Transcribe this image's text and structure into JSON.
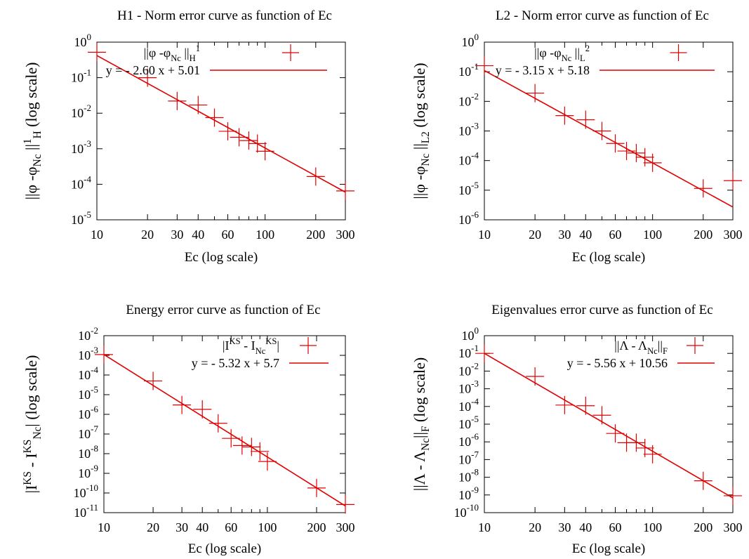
{
  "colors": {
    "series": "#e00000",
    "axes": "#000000",
    "background": "#ffffff"
  },
  "chart_data": [
    {
      "type": "scatter",
      "title": "H1 - Norm error curve as function of Ec",
      "xlabel": "Ec (log scale)",
      "ylabel": {
        "pre": "||φ -φ",
        "sub1": "Nc",
        "mid": " ||",
        "sub2": "H",
        "sup2": "1",
        "post": " (log scale)"
      },
      "xscale": "log",
      "yscale": "log",
      "xlim": [
        10,
        300
      ],
      "ylim": [
        1e-05,
        1
      ],
      "xticks": [
        {
          "v": 10,
          "label": "10"
        },
        {
          "v": 20,
          "label": "20"
        },
        {
          "v": 30,
          "label": "30"
        },
        {
          "v": 40,
          "label": "40"
        },
        {
          "v": 60,
          "label": "60"
        },
        {
          "v": 100,
          "label": "100"
        },
        {
          "v": 200,
          "label": "200"
        },
        {
          "v": 300,
          "label": "300"
        }
      ],
      "yticks": [
        {
          "v": 1e-05,
          "base": "10",
          "exp": "-5"
        },
        {
          "v": 0.0001,
          "base": "10",
          "exp": "-4"
        },
        {
          "v": 0.001,
          "base": "10",
          "exp": "-3"
        },
        {
          "v": 0.01,
          "base": "10",
          "exp": "-2"
        },
        {
          "v": 0.1,
          "base": "10",
          "exp": "-1"
        },
        {
          "v": 1,
          "base": "10",
          "exp": "0"
        }
      ],
      "legend_position": "top-right",
      "legend": [
        {
          "kind": "points",
          "label": {
            "pre": "||φ -φ",
            "sub": "Nc",
            "mid": " ||",
            "sub2": "H",
            "sup2": "1"
          }
        },
        {
          "kind": "line",
          "label": "y = - 2.60 x + 5.01"
        }
      ],
      "series": [
        {
          "kind": "points",
          "x": [
            10,
            20,
            30,
            40,
            50,
            60,
            70,
            80,
            90,
            100,
            200,
            300
          ],
          "y": [
            0.52,
            0.1,
            0.022,
            0.017,
            0.0075,
            0.0031,
            0.0021,
            0.0017,
            0.0014,
            0.00085,
            0.000165,
            6.5e-05
          ]
        },
        {
          "kind": "line",
          "x": [
            10,
            300
          ],
          "y": [
            0.42,
            6e-05
          ]
        }
      ]
    },
    {
      "type": "scatter",
      "title": "L2 - Norm error curve as function of Ec",
      "xlabel": "Ec (log scale)",
      "ylabel": {
        "pre": "||φ -φ",
        "sub1": "Nc",
        "mid": " ||",
        "sub2": "L2",
        "sup2": "",
        "post": " (log scale)"
      },
      "xscale": "log",
      "yscale": "log",
      "xlim": [
        10,
        300
      ],
      "ylim": [
        1e-06,
        1
      ],
      "xticks": [
        {
          "v": 10,
          "label": "10"
        },
        {
          "v": 20,
          "label": "20"
        },
        {
          "v": 30,
          "label": "30"
        },
        {
          "v": 40,
          "label": "40"
        },
        {
          "v": 60,
          "label": "60"
        },
        {
          "v": 100,
          "label": "100"
        },
        {
          "v": 200,
          "label": "200"
        },
        {
          "v": 300,
          "label": "300"
        }
      ],
      "yticks": [
        {
          "v": 1e-06,
          "base": "10",
          "exp": "-6"
        },
        {
          "v": 1e-05,
          "base": "10",
          "exp": "-5"
        },
        {
          "v": 0.0001,
          "base": "10",
          "exp": "-4"
        },
        {
          "v": 0.001,
          "base": "10",
          "exp": "-3"
        },
        {
          "v": 0.01,
          "base": "10",
          "exp": "-2"
        },
        {
          "v": 0.1,
          "base": "10",
          "exp": "-1"
        },
        {
          "v": 1,
          "base": "10",
          "exp": "0"
        }
      ],
      "legend_position": "top-right",
      "legend": [
        {
          "kind": "points",
          "label": {
            "pre": "||φ -φ",
            "sub": "Nc",
            "mid": " ||",
            "sub2": "L",
            "sup2": "2"
          }
        },
        {
          "kind": "line",
          "label": "y = - 3.15 x + 5.18"
        }
      ],
      "series": [
        {
          "kind": "points",
          "x": [
            10,
            20,
            30,
            40,
            50,
            60,
            70,
            80,
            90,
            100,
            200,
            300
          ],
          "y": [
            0.16,
            0.019,
            0.0033,
            0.0024,
            0.001,
            0.00038,
            0.00021,
            0.00018,
            0.00013,
            8.4e-05,
            1.15e-05,
            2.1e-05
          ]
        },
        {
          "kind": "line",
          "x": [
            10,
            300
          ],
          "y": [
            0.11,
            2.7e-06
          ]
        }
      ]
    },
    {
      "type": "scatter",
      "title": "Energy error curve as function of Ec",
      "xlabel": "Ec (log scale)",
      "ylabel": {
        "pre": "|I",
        "sup1": "KS",
        "mid": " - I",
        "sup2": "KS",
        "sub2": "Nc",
        "post": "| (log scale)"
      },
      "xscale": "log",
      "yscale": "log",
      "xlim": [
        10,
        300
      ],
      "ylim": [
        1e-11,
        0.01
      ],
      "xticks": [
        {
          "v": 10,
          "label": "10"
        },
        {
          "v": 20,
          "label": "20"
        },
        {
          "v": 30,
          "label": "30"
        },
        {
          "v": 40,
          "label": "40"
        },
        {
          "v": 60,
          "label": "60"
        },
        {
          "v": 100,
          "label": "100"
        },
        {
          "v": 200,
          "label": "200"
        },
        {
          "v": 300,
          "label": "300"
        }
      ],
      "yticks": [
        {
          "v": 1e-11,
          "base": "10",
          "exp": "-11"
        },
        {
          "v": 1e-10,
          "base": "10",
          "exp": "-10"
        },
        {
          "v": 1e-09,
          "base": "10",
          "exp": "-9"
        },
        {
          "v": 1e-08,
          "base": "10",
          "exp": "-8"
        },
        {
          "v": 1e-07,
          "base": "10",
          "exp": "-7"
        },
        {
          "v": 1e-06,
          "base": "10",
          "exp": "-6"
        },
        {
          "v": 1e-05,
          "base": "10",
          "exp": "-5"
        },
        {
          "v": 0.0001,
          "base": "10",
          "exp": "-4"
        },
        {
          "v": 0.001,
          "base": "10",
          "exp": "-3"
        },
        {
          "v": 0.01,
          "base": "10",
          "exp": "-2"
        }
      ],
      "legend_position": "top-right",
      "legend": [
        {
          "kind": "points",
          "label": {
            "pre": "|I",
            "sup": "KS",
            "mid": " - I",
            "sup2": "KS",
            "sub2": "Nc",
            "post": "|"
          }
        },
        {
          "kind": "line",
          "label": "y = - 5.32 x + 5.7"
        }
      ],
      "series": [
        {
          "kind": "points",
          "x": [
            10,
            20,
            30,
            40,
            50,
            60,
            70,
            80,
            90,
            100,
            200,
            300
          ],
          "y": [
            0.0011,
            5e-05,
            3e-06,
            1.8e-06,
            3.5e-07,
            6e-08,
            2.6e-08,
            2.2e-08,
            1.3e-08,
            4e-09,
            1.8e-10,
            2.6e-11
          ]
        },
        {
          "kind": "line",
          "x": [
            10,
            300
          ],
          "y": [
            0.0011,
            2.2e-11
          ]
        }
      ]
    },
    {
      "type": "scatter",
      "title": "Eigenvalues error curve as function of Ec",
      "xlabel": "Ec (log scale)",
      "ylabel": {
        "pre": "||Λ - Λ",
        "sub1": "Nc",
        "mid": "||",
        "sub2": "F",
        "post": " (log scale)"
      },
      "xscale": "log",
      "yscale": "log",
      "xlim": [
        10,
        300
      ],
      "ylim": [
        1e-10,
        1
      ],
      "xticks": [
        {
          "v": 10,
          "label": "10"
        },
        {
          "v": 20,
          "label": "20"
        },
        {
          "v": 30,
          "label": "30"
        },
        {
          "v": 40,
          "label": "40"
        },
        {
          "v": 60,
          "label": "60"
        },
        {
          "v": 100,
          "label": "100"
        },
        {
          "v": 200,
          "label": "200"
        },
        {
          "v": 300,
          "label": "300"
        }
      ],
      "yticks": [
        {
          "v": 1e-10,
          "base": "10",
          "exp": "-10"
        },
        {
          "v": 1e-09,
          "base": "10",
          "exp": "-9"
        },
        {
          "v": 1e-08,
          "base": "10",
          "exp": "-8"
        },
        {
          "v": 1e-07,
          "base": "10",
          "exp": "-7"
        },
        {
          "v": 1e-06,
          "base": "10",
          "exp": "-6"
        },
        {
          "v": 1e-05,
          "base": "10",
          "exp": "-5"
        },
        {
          "v": 0.0001,
          "base": "10",
          "exp": "-4"
        },
        {
          "v": 0.001,
          "base": "10",
          "exp": "-3"
        },
        {
          "v": 0.01,
          "base": "10",
          "exp": "-2"
        },
        {
          "v": 0.1,
          "base": "10",
          "exp": "-1"
        },
        {
          "v": 1,
          "base": "10",
          "exp": "0"
        }
      ],
      "legend_position": "top-right",
      "legend": [
        {
          "kind": "points",
          "label": {
            "pre": "||Λ - Λ",
            "sub": "Nc",
            "mid": "||",
            "sub2": "F",
            "sup2": ""
          }
        },
        {
          "kind": "line",
          "label": "y = - 5.56 x + 10.56"
        }
      ],
      "series": [
        {
          "kind": "points",
          "x": [
            10,
            20,
            30,
            40,
            50,
            60,
            70,
            80,
            90,
            100,
            200,
            300
          ],
          "y": [
            0.1,
            0.005,
            0.00012,
            0.00011,
            3.2e-05,
            3e-06,
            9e-07,
            9e-07,
            4.5e-07,
            2e-07,
            6.3e-09,
            9e-10
          ]
        },
        {
          "kind": "line",
          "x": [
            10,
            300
          ],
          "y": [
            0.1,
            6.8e-10
          ]
        }
      ]
    }
  ]
}
